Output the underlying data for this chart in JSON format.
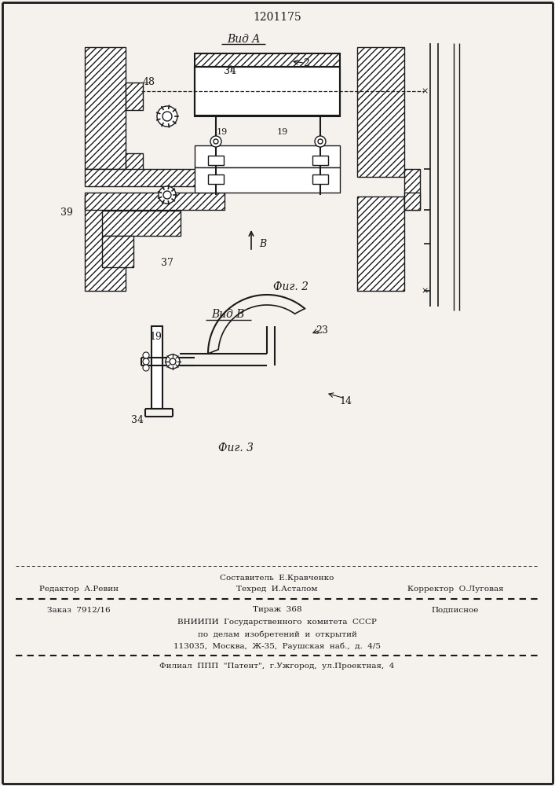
{
  "patent_number": "1201175",
  "bg_color": "#f5f2ee",
  "fig2_label": "Фиг. 2",
  "fig3_label": "Фиг. 3",
  "view_a_label": "Вид A",
  "view_b_label": "Вид B",
  "footer_line0": "Составитель  Е.Кравченко",
  "footer_line1a": "Редактор  А.Ревин",
  "footer_line1b": "Техред  И.Асталом",
  "footer_line1c": "Корректор  О.Луговая",
  "footer_line2a": "Заказ  7912/16",
  "footer_line2b": "Тираж  368",
  "footer_line2c": "Подписное",
  "footer_line3": "ВНИИПИ  Государственного  комитета  СССР",
  "footer_line4": "по  делам  изобретений  и  открытий",
  "footer_line5": "113035,  Москва,  Ж-35,  Раушская  наб.,  д.  4/5",
  "footer_line6": "Филиал  ППП  \"Патент\",  г.Ужгород,  ул.Проектная,  4",
  "line_color": "#1a1a1a"
}
